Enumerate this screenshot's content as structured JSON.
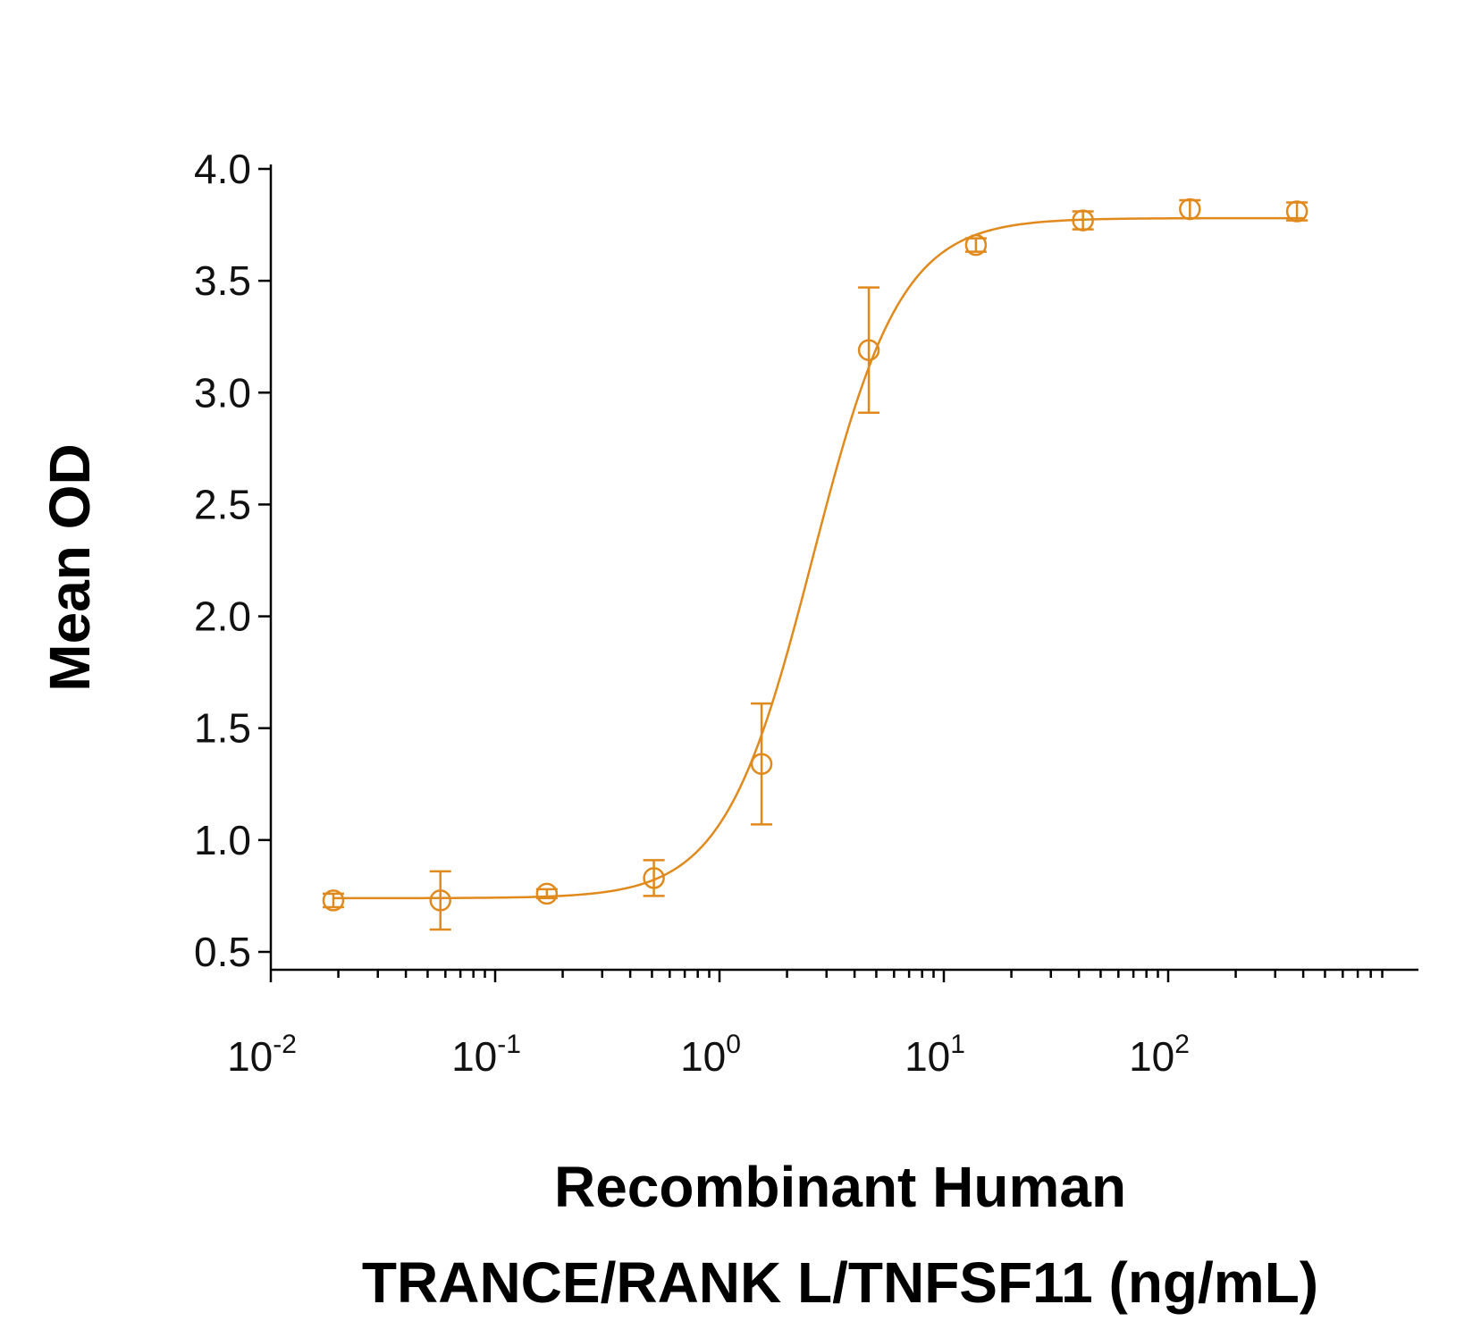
{
  "chart_data": {
    "type": "scatter",
    "xlabel_line1": "Recombinant Human",
    "xlabel_line2": "TRANCE/RANK L/TNFSF11 (ng/mL)",
    "ylabel": "Mean OD",
    "x_scale": "log",
    "xlim": [
      0.01,
      780
    ],
    "ylim": [
      0.5,
      4.0
    ],
    "y_ticks": [
      "0.5",
      "1.0",
      "1.5",
      "2.0",
      "2.5",
      "3.0",
      "3.5",
      "4.0"
    ],
    "x_ticks": [
      {
        "base": "10",
        "exp": "-2",
        "value": 0.01
      },
      {
        "base": "10",
        "exp": "-1",
        "value": 0.1
      },
      {
        "base": "10",
        "exp": "0",
        "value": 1
      },
      {
        "base": "10",
        "exp": "1",
        "value": 10
      },
      {
        "base": "10",
        "exp": "2",
        "value": 100
      }
    ],
    "grid": false,
    "color": "#E08A1E",
    "points": [
      {
        "x": 0.019,
        "y": 0.73,
        "err": 0.03
      },
      {
        "x": 0.057,
        "y": 0.73,
        "err": 0.13
      },
      {
        "x": 0.17,
        "y": 0.76,
        "err": 0.02
      },
      {
        "x": 0.51,
        "y": 0.83,
        "err": 0.08
      },
      {
        "x": 1.54,
        "y": 1.34,
        "err": 0.27
      },
      {
        "x": 4.63,
        "y": 3.19,
        "err": 0.28
      },
      {
        "x": 13.9,
        "y": 3.66,
        "err": 0.03
      },
      {
        "x": 41.7,
        "y": 3.77,
        "err": 0.04
      },
      {
        "x": 125,
        "y": 3.82,
        "err": 0.04
      },
      {
        "x": 375,
        "y": 3.81,
        "err": 0.04
      }
    ],
    "fit_curve": {
      "model": "4PL",
      "bottom": 0.74,
      "top": 3.78,
      "ec50": 2.6,
      "hill": 2.2
    }
  }
}
